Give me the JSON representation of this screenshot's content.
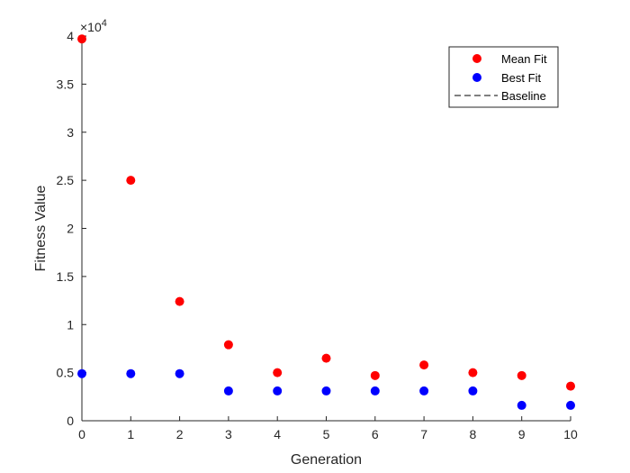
{
  "chart_data": {
    "type": "scatter",
    "xlabel": "Generation",
    "ylabel": "Fitness Value",
    "xlim": [
      0,
      10
    ],
    "ylim": [
      0,
      40000
    ],
    "x_ticks": [
      0,
      1,
      2,
      3,
      4,
      5,
      6,
      7,
      8,
      9,
      10
    ],
    "y_ticks": [
      0,
      5000,
      10000,
      15000,
      20000,
      25000,
      30000,
      35000,
      40000
    ],
    "y_tick_labels": [
      "0",
      "0.5",
      "1",
      "1.5",
      "2",
      "2.5",
      "3",
      "3.5",
      "4"
    ],
    "y_exponent_base": "×10",
    "y_exponent_power": "4",
    "grid": false,
    "legend_position": "top-right",
    "series": [
      {
        "name": "Mean Fit",
        "color": "#ff0000",
        "marker": "circle",
        "x": [
          0,
          1,
          2,
          3,
          4,
          5,
          6,
          7,
          8,
          9,
          10
        ],
        "y": [
          39700,
          25000,
          12400,
          7900,
          5000,
          6500,
          4700,
          5800,
          5000,
          4700,
          3600
        ]
      },
      {
        "name": "Best Fit",
        "color": "#0000ff",
        "marker": "circle",
        "x": [
          0,
          1,
          2,
          3,
          4,
          5,
          6,
          7,
          8,
          9,
          10
        ],
        "y": [
          4900,
          4900,
          4900,
          3100,
          3100,
          3100,
          3100,
          3100,
          3100,
          1600,
          1600
        ]
      },
      {
        "name": "Baseline",
        "color": "#000000",
        "line_style": "dashed",
        "x": [],
        "y": []
      }
    ]
  }
}
